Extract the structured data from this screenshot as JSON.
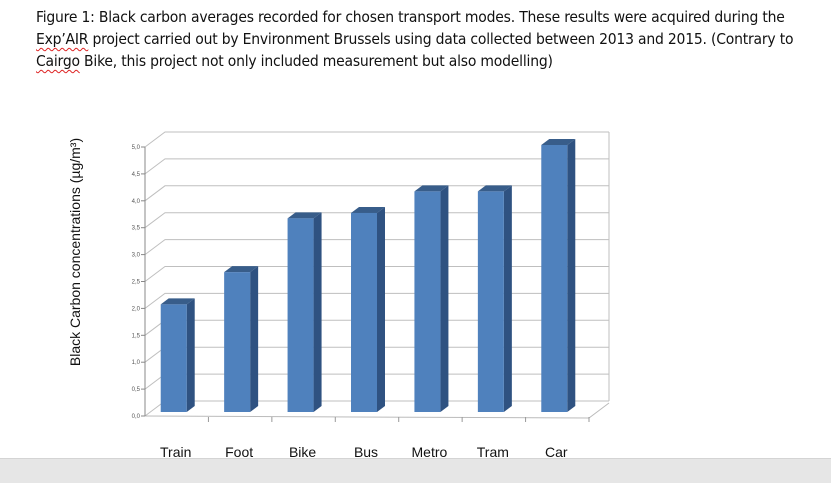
{
  "caption": {
    "part1": "Figure 1:  Black carbon averages recorded for chosen transport modes. These results were acquired during the ",
    "misspelled1": "Exp’AIR",
    "part2": " project carried out by Environment Brussels using data collected between 2013 and 2015. (Contrary to ",
    "misspelled2": "Cairgo",
    "part3": " Bike, this project not only included measurement but also modelling)"
  },
  "chart_data": {
    "type": "bar",
    "style": "3d-column",
    "categories": [
      "Train",
      "Foot",
      "Bike",
      "Bus",
      "Metro",
      "Tram",
      "Car"
    ],
    "values": [
      2.0,
      2.6,
      3.6,
      3.7,
      4.1,
      4.1,
      5.0
    ],
    "title": "",
    "xlabel": "",
    "ylabel": "Black Carbon concentrations (µg/m³)",
    "ylim": [
      0,
      5
    ],
    "yticks": [
      "0,0",
      "0,5",
      "1,0",
      "1,5",
      "2,0",
      "2,5",
      "3,0",
      "3,5",
      "4,0",
      "4,5",
      "5,0"
    ],
    "grid": true,
    "legend": "none",
    "colors": {
      "front": "#4f81bd",
      "side": "#2f5281",
      "top": "#385d8a",
      "grid": "#bfbfbf"
    }
  }
}
